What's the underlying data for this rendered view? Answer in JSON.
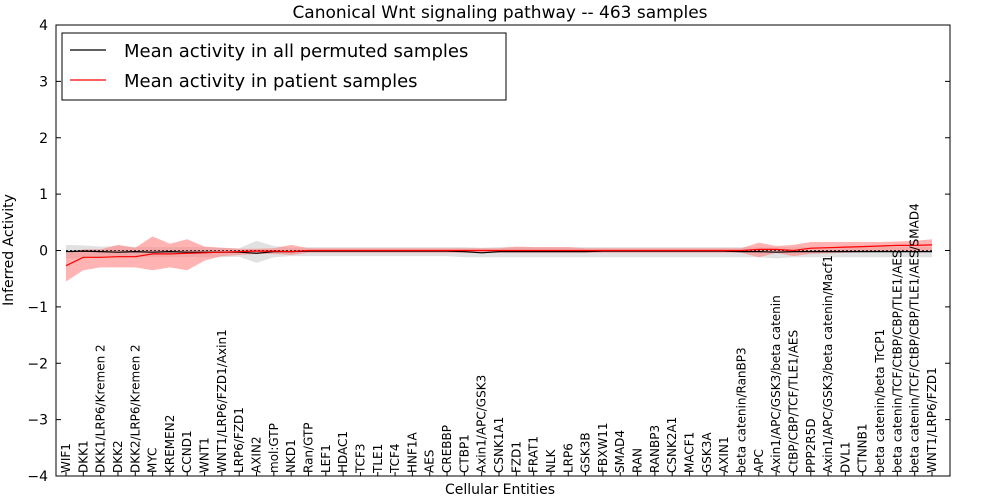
{
  "chart_data": {
    "type": "line",
    "title": "Canonical Wnt signaling pathway -- 463 samples",
    "xlabel": "Cellular Entities",
    "ylabel": "Inferred Activity",
    "ylim": [
      -4,
      4
    ],
    "yticks": [
      "−4",
      "−3",
      "−2",
      "−1",
      "0",
      "1",
      "2",
      "3",
      "4"
    ],
    "ytick_values": [
      -4,
      -3,
      -2,
      -1,
      0,
      1,
      2,
      3,
      4
    ],
    "legend_position": "top-left",
    "colors": {
      "permuted": "#000000",
      "patient": "#ff0000",
      "permuted_band": "#c8c8c8",
      "patient_band": "#ff8080"
    },
    "categories": [
      "WIF1",
      "DKK1",
      "DKK1/LRP6/Kremen 2",
      "DKK2",
      "DKK2/LRP6/Kremen 2",
      "MYC",
      "KREMEN2",
      "CCND1",
      "WNT1",
      "WNT1/LRP6/FZD1/Axin1",
      "LRP6/FZD1",
      "AXIN2",
      "mol:GTP",
      "NKD1",
      "Ran/GTP",
      "LEF1",
      "HDAC1",
      "TCF3",
      "TLE1",
      "TCF4",
      "HNF1A",
      "AES",
      "CREBBP",
      "CTBP1",
      "Axin1/APC/GSK3",
      "CSNK1A1",
      "FZD1",
      "FRAT1",
      "NLK",
      "LRP6",
      "GSK3B",
      "FBXW11",
      "SMAD4",
      "RAN",
      "RANBP3",
      "CSNK2A1",
      "MACF1",
      "GSK3A",
      "AXIN1",
      "beta catenin/RanBP3",
      "APC",
      "Axin1/APC/GSK3/beta catenin",
      "CtBP/CBP/TCF/TLE1/AES",
      "PPP2R5D",
      "Axin1/APC/GSK3/beta catenin/Macf1",
      "DVL1",
      "CTNNB1",
      "beta catenin/beta TrCP1",
      "beta catenin/TCF/CtBP/CBP/TLE1/AES",
      "beta catenin/TCF/CtBP/CBP/TLE1/AES/SMAD4",
      "WNT1/LRP6/FZD1"
    ],
    "series": [
      {
        "name": "Mean activity in all permuted samples",
        "values": [
          -0.02,
          -0.01,
          -0.02,
          -0.03,
          -0.02,
          -0.03,
          -0.02,
          -0.03,
          -0.03,
          -0.03,
          -0.03,
          -0.05,
          -0.02,
          -0.02,
          -0.01,
          -0.01,
          -0.01,
          -0.01,
          -0.01,
          -0.01,
          -0.01,
          -0.01,
          -0.01,
          -0.02,
          -0.04,
          -0.02,
          -0.02,
          -0.02,
          -0.02,
          -0.02,
          -0.02,
          -0.01,
          -0.01,
          -0.01,
          -0.01,
          -0.01,
          -0.01,
          -0.01,
          -0.01,
          -0.02,
          -0.02,
          -0.03,
          -0.02,
          -0.02,
          -0.02,
          -0.02,
          -0.02,
          -0.02,
          -0.02,
          -0.02,
          -0.02
        ],
        "band_upper": [
          0.1,
          0.09,
          0.07,
          0.08,
          0.06,
          0.06,
          0.06,
          0.06,
          0.06,
          0.05,
          0.04,
          0.17,
          0.08,
          0.05,
          0.06,
          0.06,
          0.06,
          0.06,
          0.06,
          0.06,
          0.06,
          0.06,
          0.06,
          0.06,
          0.05,
          0.06,
          0.06,
          0.06,
          0.06,
          0.06,
          0.06,
          0.06,
          0.06,
          0.06,
          0.06,
          0.06,
          0.06,
          0.06,
          0.06,
          0.06,
          0.06,
          0.06,
          0.06,
          0.06,
          0.06,
          0.06,
          0.06,
          0.06,
          0.06,
          0.06,
          0.06
        ],
        "band_lower": [
          -0.15,
          -0.12,
          -0.12,
          -0.13,
          -0.12,
          -0.12,
          -0.12,
          -0.12,
          -0.12,
          -0.12,
          -0.11,
          -0.22,
          -0.12,
          -0.1,
          -0.1,
          -0.1,
          -0.1,
          -0.1,
          -0.1,
          -0.1,
          -0.1,
          -0.1,
          -0.1,
          -0.12,
          -0.12,
          -0.12,
          -0.12,
          -0.12,
          -0.12,
          -0.12,
          -0.12,
          -0.12,
          -0.12,
          -0.12,
          -0.12,
          -0.12,
          -0.12,
          -0.12,
          -0.12,
          -0.12,
          -0.12,
          -0.14,
          -0.12,
          -0.12,
          -0.12,
          -0.12,
          -0.12,
          -0.12,
          -0.12,
          -0.12,
          -0.12
        ]
      },
      {
        "name": "Mean activity in patient samples",
        "values": [
          -0.27,
          -0.12,
          -0.12,
          -0.11,
          -0.11,
          -0.06,
          -0.06,
          -0.05,
          -0.04,
          -0.03,
          -0.02,
          -0.01,
          -0.01,
          -0.02,
          0.0,
          0.0,
          0.0,
          0.0,
          0.0,
          0.0,
          0.0,
          0.0,
          0.0,
          0.0,
          0.0,
          0.0,
          0.0,
          0.0,
          0.0,
          0.0,
          0.0,
          0.0,
          0.0,
          0.0,
          0.0,
          0.0,
          0.0,
          0.0,
          0.0,
          0.0,
          0.02,
          0.02,
          0.0,
          0.04,
          0.05,
          0.06,
          0.07,
          0.08,
          0.09,
          0.09,
          0.1
        ],
        "band_upper": [
          -0.05,
          0.02,
          0.02,
          0.1,
          0.05,
          0.25,
          0.12,
          0.2,
          0.07,
          0.05,
          0.03,
          0.03,
          0.04,
          0.1,
          0.04,
          0.04,
          0.04,
          0.04,
          0.04,
          0.04,
          0.04,
          0.04,
          0.04,
          0.04,
          0.04,
          0.04,
          0.07,
          0.06,
          0.06,
          0.06,
          0.04,
          0.04,
          0.04,
          0.04,
          0.04,
          0.04,
          0.04,
          0.04,
          0.04,
          0.04,
          0.14,
          0.08,
          0.1,
          0.15,
          0.15,
          0.15,
          0.15,
          0.15,
          0.16,
          0.17,
          0.2
        ],
        "band_lower": [
          -0.55,
          -0.35,
          -0.3,
          -0.3,
          -0.3,
          -0.35,
          -0.3,
          -0.35,
          -0.18,
          -0.1,
          -0.08,
          -0.06,
          -0.06,
          -0.08,
          -0.04,
          -0.04,
          -0.04,
          -0.04,
          -0.04,
          -0.04,
          -0.04,
          -0.04,
          -0.04,
          -0.04,
          -0.04,
          -0.04,
          -0.04,
          -0.04,
          -0.04,
          -0.04,
          -0.04,
          -0.04,
          -0.04,
          -0.04,
          -0.04,
          -0.04,
          -0.04,
          -0.04,
          -0.04,
          -0.04,
          -0.12,
          -0.04,
          -0.1,
          -0.06,
          -0.05,
          -0.04,
          -0.03,
          -0.02,
          -0.02,
          -0.01,
          0.0
        ]
      }
    ]
  }
}
